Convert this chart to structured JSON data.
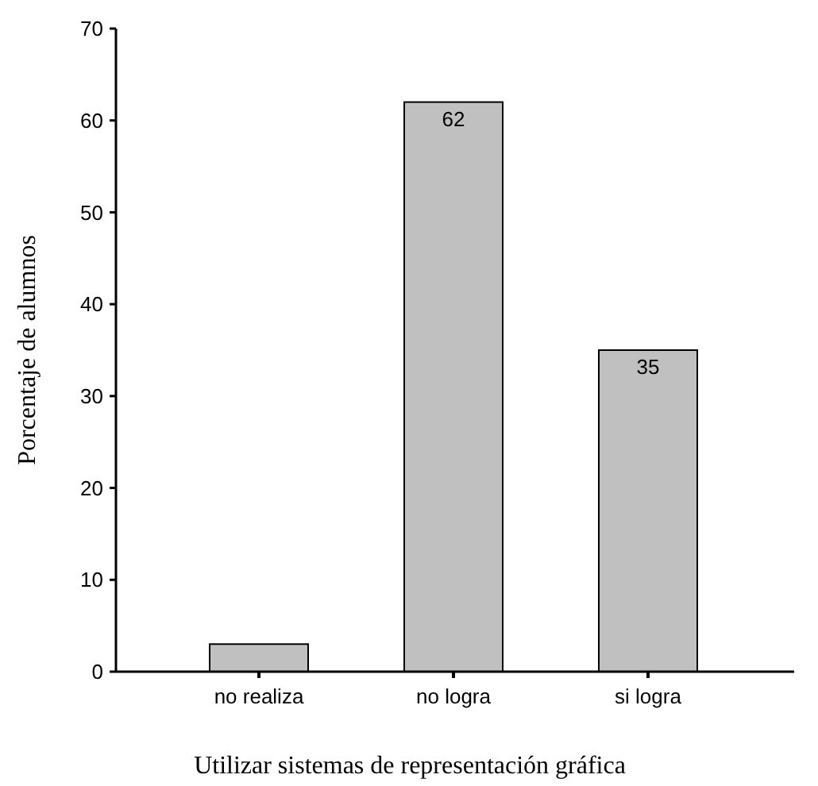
{
  "chart_data": {
    "type": "bar",
    "xlabel": "Utilizar sistemas de representación gráfica",
    "ylabel": "Porcentaje de alumnos",
    "categories": [
      "no realiza",
      "no logra",
      "si logra"
    ],
    "values": [
      3,
      62,
      35
    ],
    "value_labels": [
      null,
      "62",
      "35"
    ],
    "color": "#c0c0c0",
    "ylim": [
      0,
      70
    ],
    "yticks": [
      0,
      10,
      20,
      30,
      40,
      50,
      60,
      70
    ],
    "grid": false
  }
}
